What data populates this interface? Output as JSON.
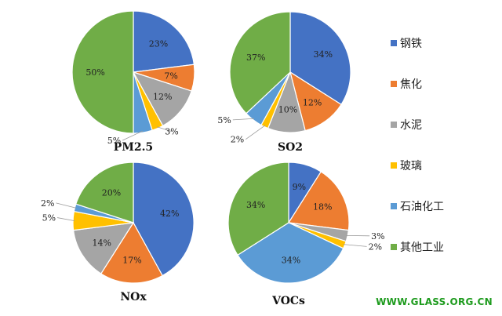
{
  "chart_data": {
    "type": "pie",
    "categories": [
      "钢铁",
      "焦化",
      "水泥",
      "玻璃",
      "石油化工",
      "其他工业"
    ],
    "colors": [
      "#4472c4",
      "#ed7d31",
      "#a5a5a5",
      "#ffc000",
      "#5b9bd5",
      "#70ad47"
    ],
    "charts": [
      {
        "title": "PM2.5",
        "values": [
          23,
          7,
          12,
          3,
          5,
          50
        ],
        "labels": [
          "23%",
          "7%",
          "12%",
          "3%",
          "5%",
          "50%"
        ]
      },
      {
        "title": "SO2",
        "values": [
          34,
          12,
          10,
          2,
          5,
          37
        ],
        "labels": [
          "34%",
          "12%",
          "10%",
          "2%",
          "5%",
          "37%"
        ]
      },
      {
        "title": "NOx",
        "values": [
          42,
          17,
          14,
          5,
          2,
          20
        ],
        "labels": [
          "42%",
          "17%",
          "14%",
          "5%",
          "2%",
          "20%"
        ]
      },
      {
        "title": "VOCs",
        "values": [
          9,
          18,
          3,
          2,
          34,
          34
        ],
        "labels": [
          "9%",
          "18%",
          "3%",
          "2%",
          "34%",
          "34%"
        ]
      }
    ],
    "legend_position": "right"
  },
  "watermark": "WWW.GLASS.ORG.CN"
}
